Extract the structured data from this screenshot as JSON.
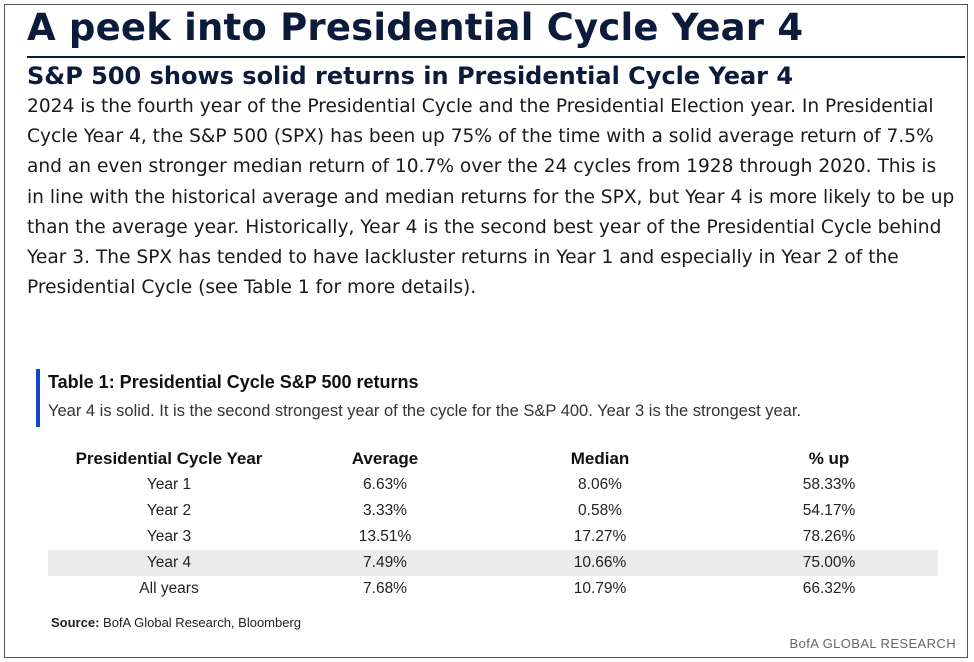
{
  "header": {
    "title": "A peek into Presidential Cycle Year 4",
    "subtitle": "S&P 500 shows solid returns in Presidential  Cycle Year 4"
  },
  "body": {
    "paragraph": "2024 is the fourth year of the Presidential Cycle and the Presidential Election year. In Presidential Cycle Year 4, the S&P 500 (SPX) has been up 75% of the time with a solid average return of 7.5% and an even stronger median return of 10.7% over the 24 cycles from 1928 through 2020. This is in line with the historical average and median returns for the SPX, but Year 4 is more likely to be up than the average year. Historically, Year 4 is the second best year of the Presidential Cycle behind Year 3. The SPX has tended to have lackluster returns in Year 1 and especially in Year 2 of the Presidential Cycle (see Table 1 for more details)."
  },
  "table": {
    "title": "Table 1: Presidential Cycle S&P 500 returns",
    "subtitle": "Year 4 is solid. It is the second strongest year of the cycle for the S&P 400. Year 3 is the strongest year.",
    "columns": [
      "Presidential Cycle Year",
      "Average",
      "Median",
      "% up"
    ],
    "rows": [
      [
        "Year 1",
        "6.63%",
        "8.06%",
        "58.33%"
      ],
      [
        "Year 2",
        "3.33%",
        "0.58%",
        "54.17%"
      ],
      [
        "Year 3",
        "13.51%",
        "17.27%",
        "78.26%"
      ],
      [
        "Year 4",
        "7.49%",
        "10.66%",
        "75.00%"
      ],
      [
        "All years",
        "7.68%",
        "10.79%",
        "66.32%"
      ]
    ],
    "highlighted_row": "Year 4",
    "highlight_color": "#ececec"
  },
  "footer": {
    "source_label": "Source:",
    "source_text": "BofA Global Research, Bloomberg",
    "brand": "BofA GLOBAL RESEARCH"
  },
  "colors": {
    "title": "#0c1a3c",
    "accent_bar": "#1246c8"
  }
}
